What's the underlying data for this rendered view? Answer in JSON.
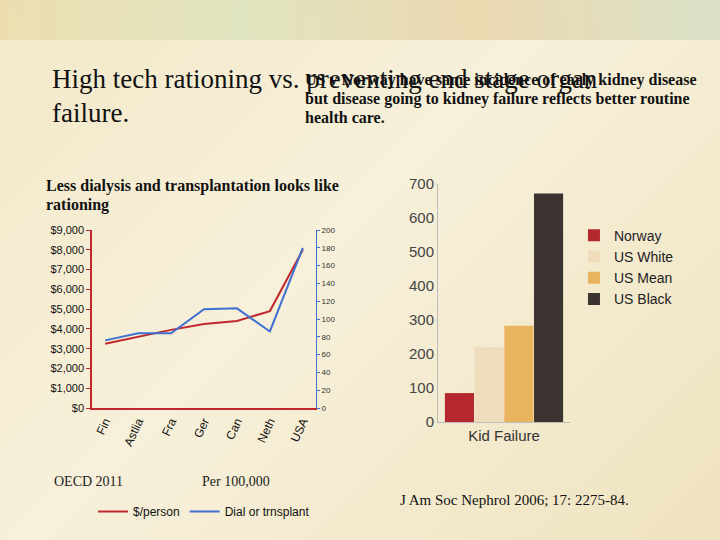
{
  "slide": {
    "title": "High tech rationing vs. preventing end stage organ failure.",
    "note": "US v Norway have same incidence of early kidney disease but disease going to kidney failure reflects better routine health care."
  },
  "chart_data": [
    {
      "type": "line",
      "title": "Less dialysis and transplantation looks like rationing",
      "categories": [
        "Fin",
        "Astlia",
        "Fra",
        "Ger",
        "Can",
        "Neth",
        "USA"
      ],
      "series": [
        {
          "name": "$/person",
          "color": "#c0282d",
          "values": [
            3250,
            3600,
            3950,
            4250,
            4400,
            4900,
            8000
          ]
        },
        {
          "name": "Dial or trnsplant",
          "color": "#3f6fd1",
          "axis": "y2",
          "values": [
            76,
            84,
            84,
            111,
            112,
            86,
            180
          ]
        }
      ],
      "ylim": [
        0,
        9000
      ],
      "yticks": [
        {
          "value": 0,
          "label": "$0"
        },
        {
          "value": 1000,
          "label": "$1,000"
        },
        {
          "value": 2000,
          "label": "$2,000"
        },
        {
          "value": 3000,
          "label": "$3,000"
        },
        {
          "value": 4000,
          "label": "$4,000"
        },
        {
          "value": 5000,
          "label": "$5,000"
        },
        {
          "value": 6000,
          "label": "$6,000"
        },
        {
          "value": 7000,
          "label": "$7,000"
        },
        {
          "value": 8000,
          "label": "$8,000"
        },
        {
          "value": 9000,
          "label": "$9,000"
        }
      ],
      "y2lim": [
        0,
        200
      ],
      "y2ticks": [
        0,
        20,
        40,
        60,
        80,
        100,
        120,
        140,
        160,
        180,
        200
      ],
      "annotations": [
        "OECD 2011",
        "Per 100,000"
      ],
      "legend": "bottom",
      "grid": false
    },
    {
      "type": "bar",
      "categories": [
        "Kid Failure"
      ],
      "series": [
        {
          "name": "Norway",
          "color": "#b5282e",
          "values": [
            85
          ]
        },
        {
          "name": "US White",
          "color": "#eedcbc",
          "values": [
            220
          ]
        },
        {
          "name": "US Mean",
          "color": "#e8b45e",
          "values": [
            283
          ]
        },
        {
          "name": "US Black",
          "color": "#3b3430",
          "values": [
            672
          ]
        }
      ],
      "ylim": [
        0,
        700
      ],
      "yticks": [
        0,
        100,
        200,
        300,
        400,
        500,
        600,
        700
      ],
      "source": "J Am Soc Nephrol 2006; 17: 2275-84.",
      "legend": "right",
      "grid": false
    }
  ]
}
